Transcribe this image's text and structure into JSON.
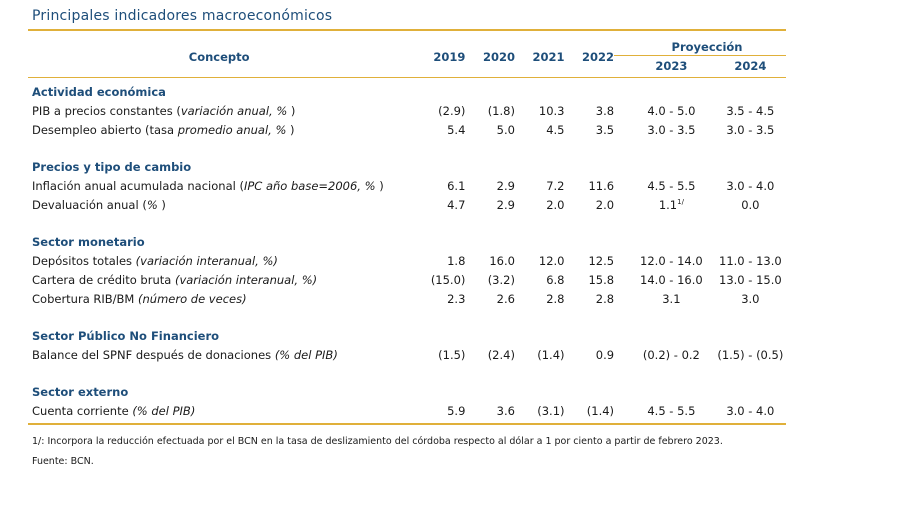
{
  "title": "Principales indicadores macroeconómicos",
  "header": {
    "concepto": "Concepto",
    "years": [
      "2019",
      "2020",
      "2021",
      "2022"
    ],
    "proyeccion": "Proyección",
    "proj_years": [
      "2023",
      "2024"
    ]
  },
  "sections": [
    {
      "title": "Actividad económica",
      "rows": [
        {
          "label": "PIB a precios constantes (",
          "label_it": "variación anual, %",
          "label_end": " )",
          "values": [
            "(2.9)",
            "(1.8)",
            "10.3",
            "3.8"
          ],
          "proj": [
            "4.0 - 5.0",
            "3.5 - 4.5"
          ]
        },
        {
          "label": "Desempleo abierto (tasa ",
          "label_it": "promedio anual, %",
          "label_end": " )",
          "values": [
            "5.4",
            "5.0",
            "4.5",
            "3.5"
          ],
          "proj": [
            "3.0 - 3.5",
            "3.0 - 3.5"
          ]
        }
      ]
    },
    {
      "title": "Precios y tipo de cambio",
      "rows": [
        {
          "label": "Inflación anual acumulada nacional (",
          "label_it": "IPC año base=2006, %",
          "label_end": " )",
          "values": [
            "6.1",
            "2.9",
            "7.2",
            "11.6"
          ],
          "proj": [
            "4.5 - 5.5",
            "3.0 - 4.0"
          ]
        },
        {
          "label": "Devaluación anual (",
          "label_it": "%",
          "label_end": " )",
          "values": [
            "4.7",
            "2.9",
            "2.0",
            "2.0"
          ],
          "proj": [
            "1.1",
            "0.0"
          ],
          "proj_sup": "1/"
        }
      ]
    },
    {
      "title": "Sector monetario",
      "rows": [
        {
          "label": "Depósitos totales ",
          "label_it": "(variación interanual, %)",
          "label_end": "",
          "values": [
            "1.8",
            "16.0",
            "12.0",
            "12.5"
          ],
          "proj": [
            "12.0 - 14.0",
            "11.0 - 13.0"
          ]
        },
        {
          "label": "Cartera de crédito bruta ",
          "label_it": "(variación interanual, %)",
          "label_end": "",
          "values": [
            "(15.0)",
            "(3.2)",
            "6.8",
            "15.8"
          ],
          "proj": [
            "14.0 - 16.0",
            "13.0 - 15.0"
          ]
        },
        {
          "label": "Cobertura RIB/BM ",
          "label_it": "(número de veces)",
          "label_end": "",
          "values": [
            "2.3",
            "2.6",
            "2.8",
            "2.8"
          ],
          "proj": [
            "3.1",
            "3.0"
          ]
        }
      ]
    },
    {
      "title": "Sector Público No Financiero",
      "rows": [
        {
          "label": "Balance del SPNF después de donaciones ",
          "label_it": "(% del PIB)",
          "label_end": "",
          "values": [
            "(1.5)",
            "(2.4)",
            "(1.4)",
            "0.9"
          ],
          "proj": [
            "(0.2) - 0.2",
            "(1.5) - (0.5)"
          ]
        }
      ]
    },
    {
      "title": "Sector externo",
      "rows": [
        {
          "label": "Cuenta corriente ",
          "label_it": "(% del PIB)",
          "label_end": "",
          "values": [
            "5.9",
            "3.6",
            "(3.1)",
            "(1.4)"
          ],
          "proj": [
            "4.5 - 5.5",
            "3.0 - 4.0"
          ]
        }
      ]
    }
  ],
  "footnote": "1/: Incorpora la reducción efectuada por el BCN en la tasa de deslizamiento del córdoba respecto al dólar a 1 por ciento a partir de febrero 2023.",
  "source": "Fuente: BCN."
}
